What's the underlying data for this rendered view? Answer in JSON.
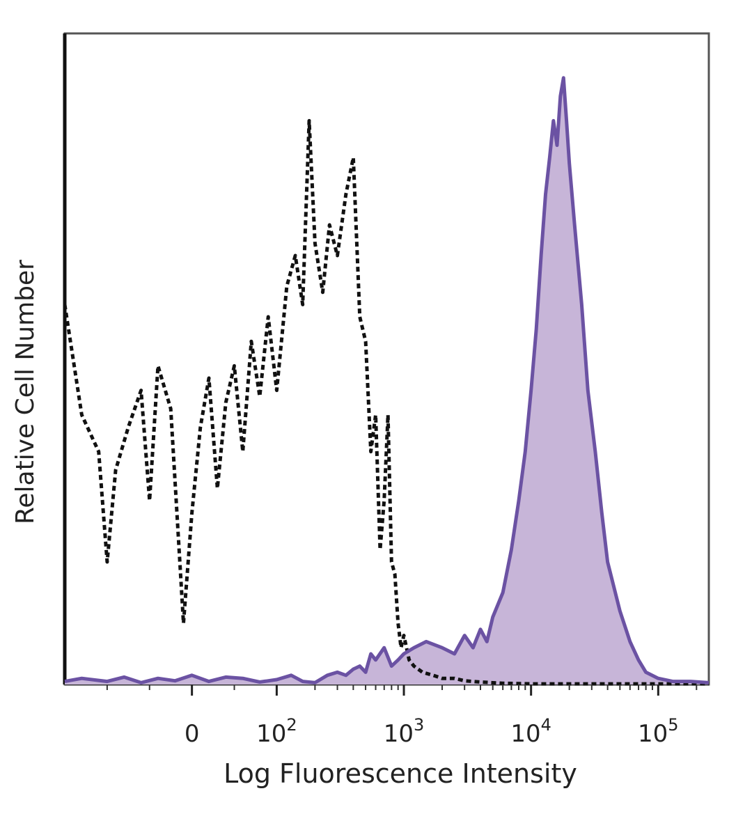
{
  "chart_data": {
    "type": "area",
    "xlabel": "Log Fluorescence Intensity",
    "ylabel": "Relative Cell Number",
    "x_scale": "biexponential",
    "xlim": [
      -150,
      250000
    ],
    "ylim": [
      0,
      100
    ],
    "grid": false,
    "legend": "none",
    "x_ticks": [
      {
        "value": 0,
        "label": "0",
        "exp": ""
      },
      {
        "value": 100,
        "label": "10",
        "exp": "2"
      },
      {
        "value": 1000,
        "label": "10",
        "exp": "3"
      },
      {
        "value": 10000,
        "label": "10",
        "exp": "4"
      },
      {
        "value": 100000,
        "label": "10",
        "exp": "5"
      }
    ],
    "minor_tick_values": [
      -100,
      -50,
      50,
      200,
      300,
      400,
      500,
      600,
      700,
      800,
      900,
      2000,
      3000,
      4000,
      5000,
      6000,
      7000,
      8000,
      9000,
      20000,
      30000,
      40000,
      50000,
      60000,
      70000,
      80000,
      90000,
      200000
    ],
    "series": [
      {
        "style": "dashed",
        "color": "#111111",
        "fill": "none",
        "x": [
          -150,
          -130,
          -110,
          -100,
          -90,
          -75,
          -60,
          -50,
          -40,
          -25,
          -10,
          0,
          10,
          20,
          30,
          40,
          50,
          60,
          70,
          80,
          90,
          100,
          120,
          140,
          160,
          180,
          200,
          230,
          260,
          300,
          350,
          400,
          450,
          500,
          550,
          600,
          650,
          700,
          750,
          800,
          850,
          900,
          950,
          1000,
          1100,
          1200,
          1400,
          1700,
          2000,
          2500,
          3000,
          4000,
          6000,
          10000,
          20000,
          50000,
          100000,
          250000
        ],
        "y": [
          62,
          44,
          38,
          20,
          35,
          42,
          48,
          30,
          52,
          45,
          10,
          28,
          42,
          50,
          32,
          46,
          52,
          38,
          56,
          47,
          60,
          48,
          65,
          70,
          62,
          92,
          72,
          64,
          75,
          70,
          80,
          86,
          60,
          56,
          38,
          44,
          22,
          30,
          44,
          20,
          18,
          10,
          6,
          8,
          4,
          3,
          2,
          1.5,
          1,
          1,
          0.6,
          0.4,
          0.2,
          0.1,
          0.1,
          0.1,
          0.1,
          0.1
        ]
      },
      {
        "style": "solid",
        "color": "#6b52a3",
        "fill": "#c7b5d8",
        "x": [
          -150,
          -130,
          -100,
          -80,
          -60,
          -40,
          -20,
          0,
          20,
          40,
          60,
          80,
          100,
          130,
          160,
          200,
          250,
          300,
          350,
          400,
          450,
          500,
          550,
          600,
          700,
          800,
          900,
          1000,
          1200,
          1500,
          2000,
          2500,
          3000,
          3500,
          4000,
          4500,
          5000,
          6000,
          7000,
          8000,
          9000,
          10000,
          11000,
          12000,
          13000,
          14000,
          15000,
          16000,
          17000,
          18000,
          19000,
          20000,
          22000,
          25000,
          28000,
          32000,
          36000,
          40000,
          50000,
          60000,
          70000,
          80000,
          100000,
          130000,
          180000,
          250000
        ],
        "y": [
          0.5,
          1,
          0.5,
          1.2,
          0.3,
          1,
          0.6,
          1.5,
          0.5,
          1.2,
          1,
          0.4,
          0.8,
          1.5,
          0.5,
          0.3,
          1.5,
          2,
          1.5,
          2.5,
          3,
          2,
          5,
          4,
          6,
          3,
          4,
          5,
          6,
          7,
          6,
          5,
          8,
          6,
          9,
          7,
          11,
          15,
          22,
          30,
          38,
          48,
          58,
          70,
          80,
          86,
          92,
          88,
          96,
          99,
          92,
          85,
          75,
          62,
          48,
          38,
          28,
          20,
          12,
          7,
          4,
          2,
          1,
          0.5,
          0.5,
          0.3
        ]
      }
    ]
  }
}
